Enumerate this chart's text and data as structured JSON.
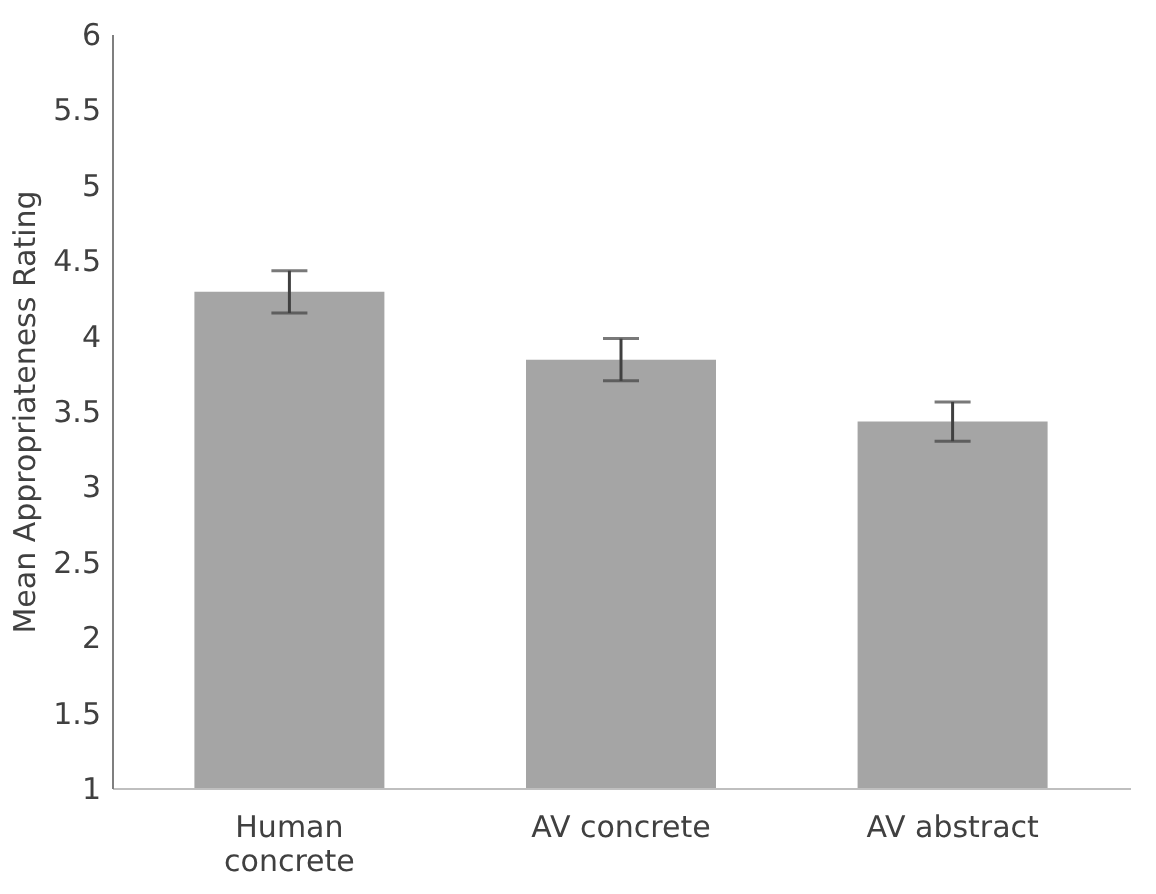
{
  "chart_data": {
    "type": "bar",
    "ylabel": "Mean Appropriateness Rating",
    "categories": [
      "Human concrete",
      "AV concrete",
      "AV abstract"
    ],
    "values": [
      4.29,
      3.84,
      3.43
    ],
    "errors": [
      0.14,
      0.14,
      0.13
    ],
    "color": "#a5a5a5",
    "ylim": [
      1,
      6
    ],
    "yticks": [
      1,
      1.5,
      2,
      2.5,
      3,
      3.5,
      4,
      4.5,
      5,
      5.5,
      6
    ],
    "grid": false
  }
}
